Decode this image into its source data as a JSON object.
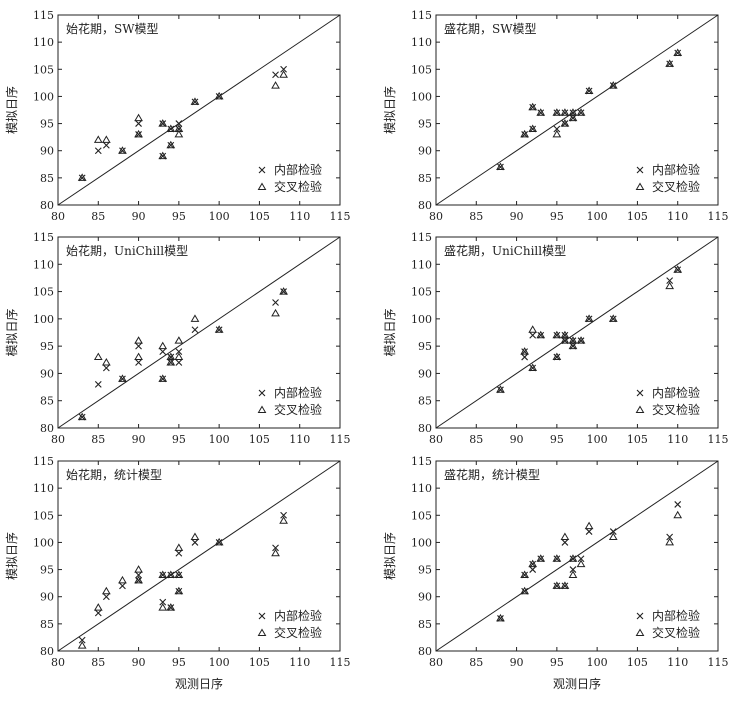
{
  "chart_data": [
    {
      "type": "scatter",
      "title": "始花期，SW模型",
      "xlabel": "",
      "ylabel": "模拟日序",
      "xlim": [
        80,
        115
      ],
      "ylim": [
        80,
        115
      ],
      "ticks": [
        80,
        85,
        90,
        95,
        100,
        105,
        110,
        115
      ],
      "reference_line": "1:1",
      "legend_position": "bottom-right",
      "series": [
        {
          "name": "内部检验",
          "marker": "x",
          "points": [
            [
              83,
              85
            ],
            [
              85,
              90
            ],
            [
              86,
              91
            ],
            [
              88,
              90
            ],
            [
              90,
              95
            ],
            [
              90,
              93
            ],
            [
              93,
              95
            ],
            [
              93,
              89
            ],
            [
              94,
              94
            ],
            [
              94,
              91
            ],
            [
              95,
              95
            ],
            [
              95,
              94
            ],
            [
              97,
              99
            ],
            [
              100,
              100
            ],
            [
              107,
              104
            ],
            [
              108,
              105
            ]
          ]
        },
        {
          "name": "交叉检验",
          "marker": "triangle",
          "points": [
            [
              83,
              85
            ],
            [
              85,
              92
            ],
            [
              86,
              92
            ],
            [
              88,
              90
            ],
            [
              90,
              96
            ],
            [
              90,
              93
            ],
            [
              93,
              95
            ],
            [
              93,
              89
            ],
            [
              94,
              94
            ],
            [
              94,
              91
            ],
            [
              95,
              94
            ],
            [
              95,
              93
            ],
            [
              97,
              99
            ],
            [
              100,
              100
            ],
            [
              107,
              102
            ],
            [
              108,
              104
            ]
          ]
        }
      ]
    },
    {
      "type": "scatter",
      "title": "盛花期，SW模型",
      "xlabel": "",
      "ylabel": "模拟日序",
      "xlim": [
        80,
        115
      ],
      "ylim": [
        80,
        115
      ],
      "ticks": [
        80,
        85,
        90,
        95,
        100,
        105,
        110,
        115
      ],
      "reference_line": "1:1",
      "legend_position": "bottom-right",
      "series": [
        {
          "name": "内部检验",
          "marker": "x",
          "points": [
            [
              88,
              87
            ],
            [
              91,
              93
            ],
            [
              92,
              98
            ],
            [
              92,
              94
            ],
            [
              93,
              97
            ],
            [
              95,
              97
            ],
            [
              95,
              94
            ],
            [
              96,
              97
            ],
            [
              96,
              95
            ],
            [
              97,
              97
            ],
            [
              97,
              96
            ],
            [
              98,
              97
            ],
            [
              99,
              101
            ],
            [
              102,
              102
            ],
            [
              109,
              106
            ],
            [
              110,
              108
            ]
          ]
        },
        {
          "name": "交叉检验",
          "marker": "triangle",
          "points": [
            [
              88,
              87
            ],
            [
              91,
              93
            ],
            [
              92,
              98
            ],
            [
              92,
              94
            ],
            [
              93,
              97
            ],
            [
              95,
              97
            ],
            [
              95,
              93
            ],
            [
              96,
              97
            ],
            [
              96,
              95
            ],
            [
              97,
              97
            ],
            [
              97,
              96
            ],
            [
              98,
              97
            ],
            [
              99,
              101
            ],
            [
              102,
              102
            ],
            [
              109,
              106
            ],
            [
              110,
              108
            ]
          ]
        }
      ]
    },
    {
      "type": "scatter",
      "title": "始花期，UniChill模型",
      "xlabel": "",
      "ylabel": "模拟日序",
      "xlim": [
        80,
        115
      ],
      "ylim": [
        80,
        115
      ],
      "ticks": [
        80,
        85,
        90,
        95,
        100,
        105,
        110,
        115
      ],
      "reference_line": "1:1",
      "legend_position": "bottom-right",
      "series": [
        {
          "name": "内部检验",
          "marker": "x",
          "points": [
            [
              83,
              82
            ],
            [
              85,
              88
            ],
            [
              86,
              91
            ],
            [
              88,
              89
            ],
            [
              90,
              95
            ],
            [
              90,
              92
            ],
            [
              93,
              94
            ],
            [
              93,
              89
            ],
            [
              94,
              93
            ],
            [
              94,
              92
            ],
            [
              95,
              94
            ],
            [
              95,
              92
            ],
            [
              97,
              98
            ],
            [
              100,
              98
            ],
            [
              107,
              103
            ],
            [
              108,
              105
            ]
          ]
        },
        {
          "name": "交叉检验",
          "marker": "triangle",
          "points": [
            [
              83,
              82
            ],
            [
              85,
              93
            ],
            [
              86,
              92
            ],
            [
              88,
              89
            ],
            [
              90,
              96
            ],
            [
              90,
              93
            ],
            [
              93,
              95
            ],
            [
              93,
              89
            ],
            [
              94,
              93
            ],
            [
              94,
              92
            ],
            [
              95,
              96
            ],
            [
              95,
              93
            ],
            [
              97,
              100
            ],
            [
              100,
              98
            ],
            [
              107,
              101
            ],
            [
              108,
              105
            ]
          ]
        }
      ]
    },
    {
      "type": "scatter",
      "title": "盛花期，UniChill模型",
      "xlabel": "",
      "ylabel": "模拟日序",
      "xlim": [
        80,
        115
      ],
      "ylim": [
        80,
        115
      ],
      "ticks": [
        80,
        85,
        90,
        95,
        100,
        105,
        110,
        115
      ],
      "reference_line": "1:1",
      "legend_position": "bottom-right",
      "series": [
        {
          "name": "内部检验",
          "marker": "x",
          "points": [
            [
              88,
              87
            ],
            [
              91,
              93
            ],
            [
              91,
              94
            ],
            [
              92,
              97
            ],
            [
              92,
              91
            ],
            [
              93,
              97
            ],
            [
              95,
              97
            ],
            [
              95,
              93
            ],
            [
              96,
              97
            ],
            [
              96,
              96
            ],
            [
              97,
              96
            ],
            [
              97,
              95
            ],
            [
              98,
              96
            ],
            [
              99,
              100
            ],
            [
              102,
              100
            ],
            [
              109,
              107
            ],
            [
              110,
              109
            ]
          ]
        },
        {
          "name": "交叉检验",
          "marker": "triangle",
          "points": [
            [
              88,
              87
            ],
            [
              91,
              94
            ],
            [
              92,
              98
            ],
            [
              92,
              91
            ],
            [
              93,
              97
            ],
            [
              95,
              97
            ],
            [
              95,
              93
            ],
            [
              96,
              97
            ],
            [
              96,
              96
            ],
            [
              97,
              96
            ],
            [
              97,
              95
            ],
            [
              98,
              96
            ],
            [
              99,
              100
            ],
            [
              102,
              100
            ],
            [
              109,
              106
            ],
            [
              110,
              109
            ]
          ]
        }
      ]
    },
    {
      "type": "scatter",
      "title": "始花期，统计模型",
      "xlabel": "观测日序",
      "ylabel": "模拟日序",
      "xlim": [
        80,
        115
      ],
      "ylim": [
        80,
        115
      ],
      "ticks": [
        80,
        85,
        90,
        95,
        100,
        105,
        110,
        115
      ],
      "reference_line": "1:1",
      "legend_position": "bottom-right",
      "series": [
        {
          "name": "内部检验",
          "marker": "x",
          "points": [
            [
              83,
              82
            ],
            [
              85,
              87
            ],
            [
              86,
              90
            ],
            [
              88,
              92
            ],
            [
              90,
              94
            ],
            [
              90,
              93
            ],
            [
              93,
              89
            ],
            [
              93,
              94
            ],
            [
              94,
              88
            ],
            [
              94,
              94
            ],
            [
              95,
              98
            ],
            [
              95,
              94
            ],
            [
              95,
              91
            ],
            [
              97,
              100
            ],
            [
              100,
              100
            ],
            [
              107,
              99
            ],
            [
              108,
              105
            ]
          ]
        },
        {
          "name": "交叉检验",
          "marker": "triangle",
          "points": [
            [
              83,
              81
            ],
            [
              85,
              88
            ],
            [
              86,
              91
            ],
            [
              88,
              93
            ],
            [
              90,
              95
            ],
            [
              90,
              93
            ],
            [
              93,
              88
            ],
            [
              93,
              94
            ],
            [
              94,
              88
            ],
            [
              94,
              94
            ],
            [
              95,
              99
            ],
            [
              95,
              94
            ],
            [
              95,
              91
            ],
            [
              97,
              101
            ],
            [
              100,
              100
            ],
            [
              107,
              98
            ],
            [
              108,
              104
            ]
          ]
        }
      ]
    },
    {
      "type": "scatter",
      "title": "盛花期，统计模型",
      "xlabel": "观测日序",
      "ylabel": "模拟日序",
      "xlim": [
        80,
        115
      ],
      "ylim": [
        80,
        115
      ],
      "ticks": [
        80,
        85,
        90,
        95,
        100,
        105,
        110,
        115
      ],
      "reference_line": "1:1",
      "legend_position": "bottom-right",
      "series": [
        {
          "name": "内部检验",
          "marker": "x",
          "points": [
            [
              88,
              86
            ],
            [
              91,
              94
            ],
            [
              91,
              91
            ],
            [
              92,
              96
            ],
            [
              92,
              95
            ],
            [
              93,
              97
            ],
            [
              95,
              97
            ],
            [
              95,
              92
            ],
            [
              96,
              100
            ],
            [
              96,
              92
            ],
            [
              97,
              97
            ],
            [
              97,
              95
            ],
            [
              98,
              97
            ],
            [
              99,
              102
            ],
            [
              102,
              102
            ],
            [
              109,
              101
            ],
            [
              110,
              107
            ]
          ]
        },
        {
          "name": "交叉检验",
          "marker": "triangle",
          "points": [
            [
              88,
              86
            ],
            [
              91,
              94
            ],
            [
              91,
              91
            ],
            [
              92,
              96
            ],
            [
              93,
              97
            ],
            [
              95,
              97
            ],
            [
              95,
              92
            ],
            [
              96,
              101
            ],
            [
              96,
              92
            ],
            [
              97,
              97
            ],
            [
              97,
              94
            ],
            [
              98,
              96
            ],
            [
              99,
              103
            ],
            [
              102,
              101
            ],
            [
              109,
              100
            ],
            [
              110,
              105
            ]
          ]
        }
      ]
    }
  ]
}
